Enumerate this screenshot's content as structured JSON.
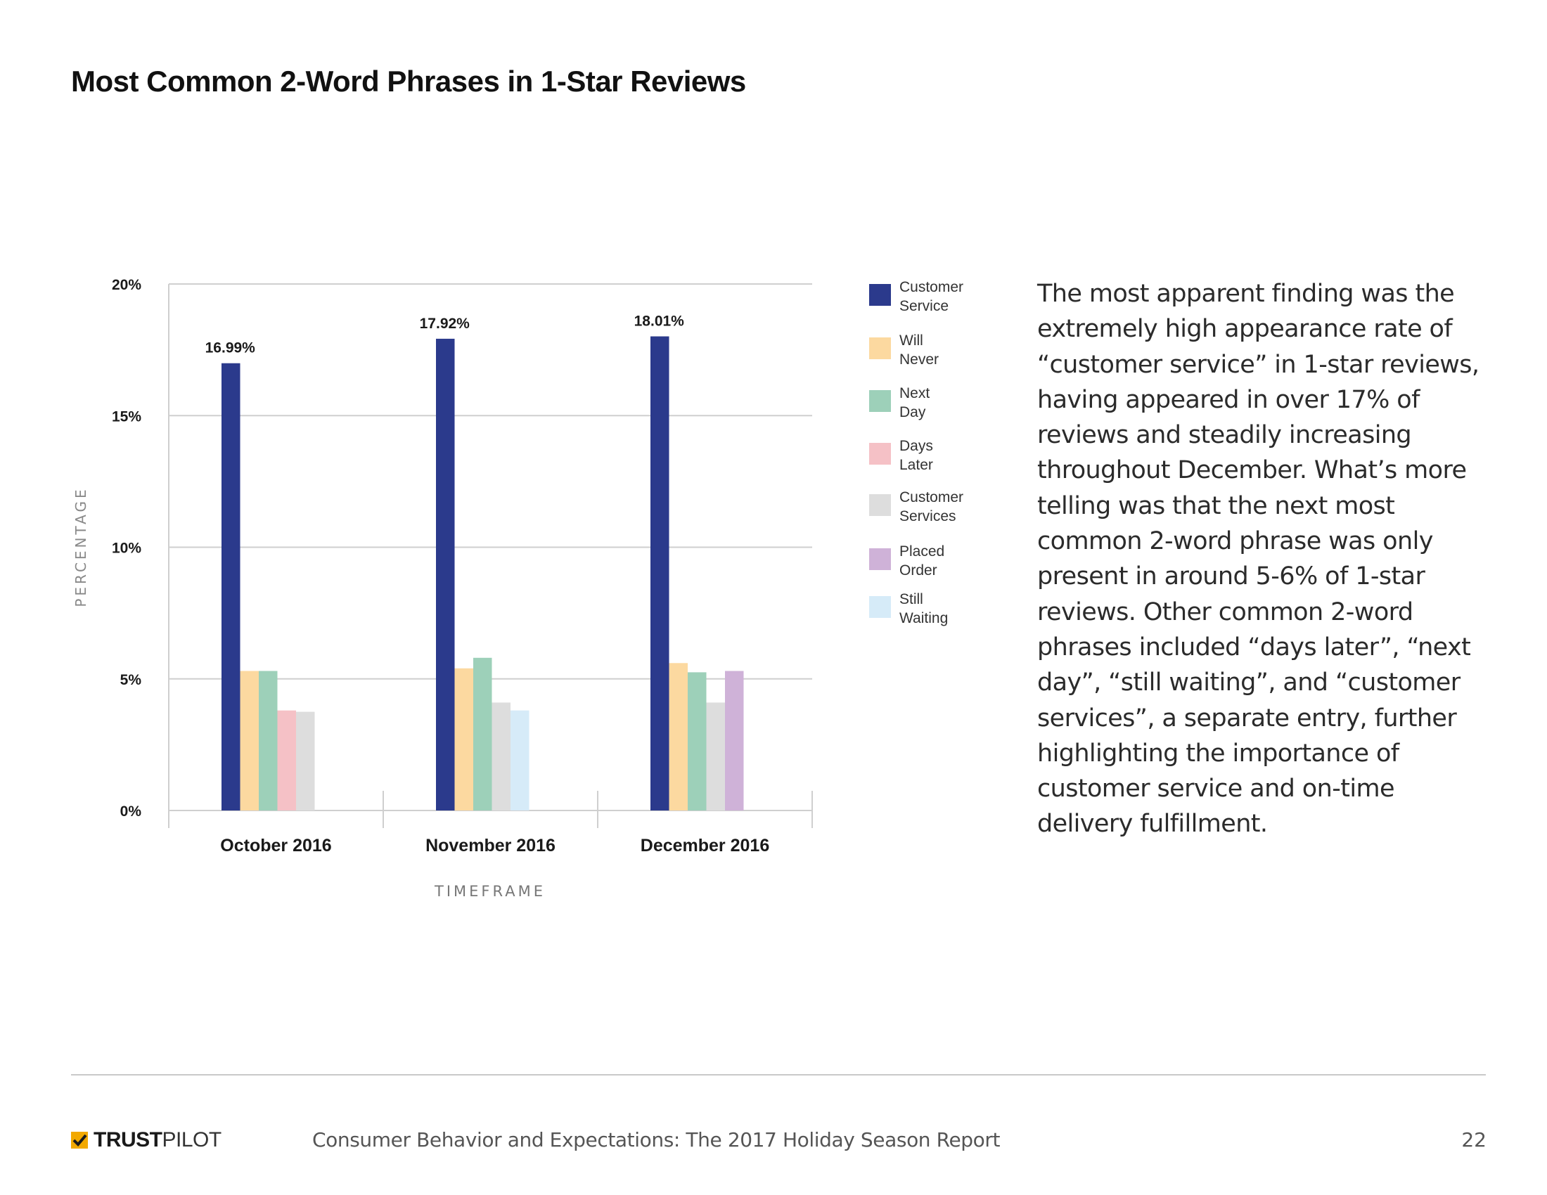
{
  "page": {
    "title": "Most Common 2-Word Phrases in 1-Star Reviews",
    "body_text": "The most apparent finding was the extremely high appearance rate of “customer service” in 1-star reviews, having appeared in over 17% of reviews and steadily increasing throughout December. What’s more telling was that the next most common 2-word phrase was only present in around 5-6% of 1-star reviews. Other common 2-word phrases included “days later”, “next day”, “still waiting”, and “customer services”, a separate entry, further highlighting the importance of customer service and on-time delivery fulfillment."
  },
  "chart_data": {
    "type": "bar",
    "title": "Most Common 2-Word Phrases in 1-Star Reviews",
    "xlabel": "TIMEFRAME",
    "ylabel": "PERCENTAGE",
    "ylim": [
      0,
      20
    ],
    "y_ticks": [
      0,
      5,
      10,
      15,
      20
    ],
    "y_tick_labels": [
      "0%",
      "5%",
      "10%",
      "15%",
      "20%"
    ],
    "categories": [
      "October 2016",
      "November 2016",
      "December 2016"
    ],
    "legend_position": "right",
    "series": [
      {
        "name": "Customer Service",
        "color": "#2b3a8c",
        "values": [
          16.99,
          17.92,
          18.01
        ]
      },
      {
        "name": "Will Never",
        "color": "#fcd9a0",
        "values": [
          5.3,
          5.4,
          5.6
        ]
      },
      {
        "name": "Next Day",
        "color": "#9dd0b9",
        "values": [
          5.3,
          5.8,
          5.25
        ]
      },
      {
        "name": "Days Later",
        "color": "#f5c1c6",
        "values": [
          3.8,
          null,
          null
        ]
      },
      {
        "name": "Customer Services",
        "color": "#dddddd",
        "values": [
          3.75,
          4.1,
          4.1
        ]
      },
      {
        "name": "Placed Order",
        "color": "#cfb2d8",
        "values": [
          null,
          null,
          5.3
        ]
      },
      {
        "name": "Still Waiting",
        "color": "#d6ebf8",
        "values": [
          null,
          3.8,
          null
        ]
      }
    ],
    "data_labels": [
      {
        "category": "October 2016",
        "series": "Customer Service",
        "text": "16.99%"
      },
      {
        "category": "November 2016",
        "series": "Customer Service",
        "text": "17.92%"
      },
      {
        "category": "December 2016",
        "series": "Customer Service",
        "text": "18.01%"
      }
    ]
  },
  "legend": {
    "items": [
      {
        "line1": "Customer",
        "line2": "Service",
        "color": "#2b3a8c"
      },
      {
        "line1": "Will",
        "line2": "Never",
        "color": "#fcd9a0"
      },
      {
        "line1": "Next",
        "line2": "Day",
        "color": "#9dd0b9"
      },
      {
        "line1": "Days",
        "line2": "Later",
        "color": "#f5c1c6"
      },
      {
        "line1": "Customer",
        "line2": "Services",
        "color": "#dddddd"
      },
      {
        "line1": "Placed",
        "line2": "Order",
        "color": "#cfb2d8"
      },
      {
        "line1": "Still",
        "line2": "Waiting",
        "color": "#d6ebf8"
      }
    ]
  },
  "footer": {
    "logo_bold": "TRUST",
    "logo_light": "PILOT",
    "logo_color": "#f2a900",
    "report_title": "Consumer Behavior and Expectations: The 2017 Holiday Season Report",
    "page_number": "22"
  }
}
